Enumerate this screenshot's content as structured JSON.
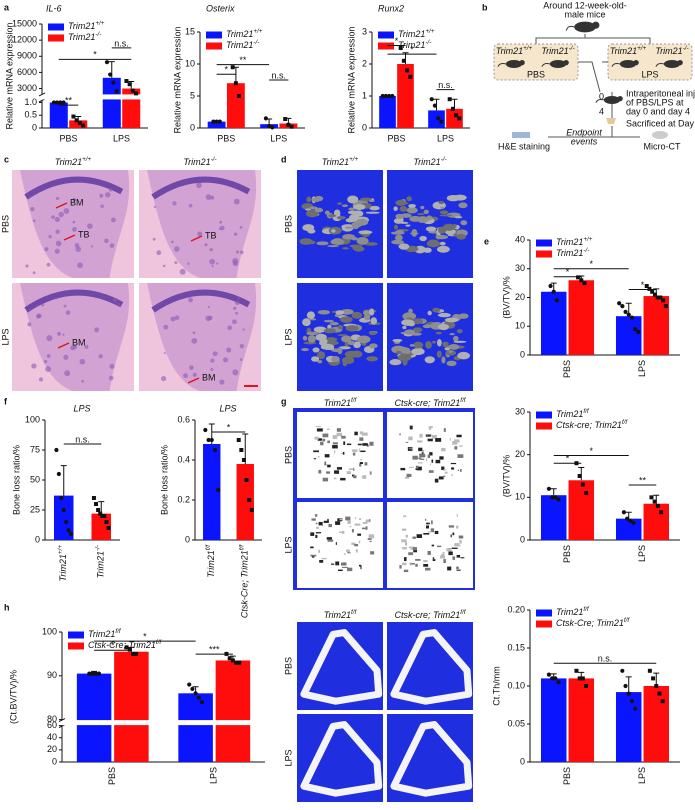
{
  "panel_labels": [
    "a",
    "b",
    "c",
    "d",
    "e",
    "f",
    "g",
    "h"
  ],
  "chart_data": [
    {
      "type": "bar",
      "title": "IL-6",
      "y_label": "Relative mRNA expression",
      "categories": [
        "PBS",
        "LPS"
      ],
      "ylim": [
        0,
        15000
      ],
      "axis_break": [
        1.1,
        2000
      ],
      "yticks": [
        0,
        0.5,
        {
          "value": 1,
          "label": "1.0"
        },
        3000,
        6000,
        9000,
        12000,
        15000
      ],
      "legend": true,
      "series": [
        {
          "name": "Trim21+/+",
          "color": "#0a14ff",
          "marker": "circle",
          "values": [
            1,
            5000
          ],
          "errors": [
            0,
            3000
          ],
          "points": [
            [
              1,
              1,
              1,
              1
            ],
            [
              7900,
              5600,
              4100,
              2500
            ]
          ]
        },
        {
          "name": "Trim21-/-",
          "color": "#ff0d0d",
          "marker": "square",
          "values": [
            0.3,
            3000
          ],
          "errors": [
            0.15,
            1300
          ],
          "points": [
            [
              0.45,
              0.3,
              0.2,
              0.1
            ],
            [
              4400,
              3800,
              2600,
              2100
            ]
          ]
        }
      ],
      "annotations": [
        "**",
        "*",
        "n.s."
      ]
    },
    {
      "type": "bar",
      "title": "Osterix",
      "y_label": "Relative mRNA expression",
      "categories": [
        "PBS",
        "LPS"
      ],
      "ylim": [
        0,
        15
      ],
      "yticks": [
        0,
        5,
        10,
        15
      ],
      "legend": true,
      "series": [
        {
          "name": "Trim21+/+",
          "color": "#0a14ff",
          "marker": "circle",
          "values": [
            1,
            0.6
          ],
          "errors": [
            0,
            0.8
          ],
          "points": [
            [
              1,
              1,
              1
            ],
            [
              1.5,
              0.3,
              0.1
            ]
          ]
        },
        {
          "name": "Trim21-/-",
          "color": "#ff0d0d",
          "marker": "square",
          "values": [
            7,
            0.7
          ],
          "errors": [
            2.5,
            0.8
          ],
          "points": [
            [
              9.5,
              7,
              5
            ],
            [
              1.4,
              0.5,
              0.2
            ]
          ]
        }
      ],
      "annotations": [
        "*",
        "**",
        "n.s."
      ]
    },
    {
      "type": "bar",
      "title": "Runx2",
      "y_label": "Relative mRNA expression",
      "categories": [
        "PBS",
        "LPS"
      ],
      "ylim": [
        0,
        3
      ],
      "yticks": [
        0,
        1,
        2,
        3
      ],
      "legend": true,
      "series": [
        {
          "name": "Trim21+/+",
          "color": "#0a14ff",
          "marker": "circle",
          "values": [
            1,
            0.55
          ],
          "errors": [
            0,
            0.35
          ],
          "points": [
            [
              1,
              1,
              1,
              1
            ],
            [
              0.9,
              0.7,
              0.3,
              0.2
            ]
          ]
        },
        {
          "name": "Trim21-/-",
          "color": "#ff0d0d",
          "marker": "square",
          "values": [
            2,
            0.6
          ],
          "errors": [
            0.35,
            0.3
          ],
          "points": [
            [
              2.5,
              2.1,
              1.8,
              1.6
            ],
            [
              0.9,
              0.6,
              0.4,
              0.3
            ]
          ]
        }
      ],
      "annotations": [
        "*",
        "*",
        "n.s."
      ]
    },
    {
      "type": "bar",
      "y_label": "(BV/TV)/%",
      "categories": [
        "PBS",
        "LPS"
      ],
      "ylim": [
        0,
        40
      ],
      "yticks": [
        0,
        10,
        20,
        30,
        40
      ],
      "legend": true,
      "series": [
        {
          "name": "Trim21+/+",
          "color": "#0a14ff",
          "marker": "circle",
          "values": [
            22,
            13.5
          ],
          "errors": [
            3,
            4.5
          ],
          "points": [
            [
              24,
              22,
              19
            ],
            [
              18,
              17,
              15,
              14,
              13,
              9,
              8
            ]
          ]
        },
        {
          "name": "Trim21-/-",
          "color": "#ff0d0d",
          "marker": "square",
          "values": [
            26,
            20.5
          ],
          "errors": [
            1.5,
            2.5
          ],
          "points": [
            [
              27,
              26,
              25
            ],
            [
              24,
              23,
              22,
              21,
              20,
              20,
              19,
              17
            ]
          ]
        }
      ],
      "annotations": [
        "*",
        "*",
        "*"
      ]
    },
    {
      "type": "bar",
      "title": "LPS",
      "y_label": "Bone loss ratio/%",
      "categories": [
        "Trim21+/+",
        "Trim21-/-"
      ],
      "ylim": [
        0,
        100
      ],
      "yticks": [
        0,
        25,
        50,
        75,
        100
      ],
      "values": [
        37,
        22
      ],
      "errors": [
        25,
        10
      ],
      "colors": [
        "#0a14ff",
        "#ff0d0d"
      ],
      "markers": [
        "circle",
        "square"
      ],
      "points": [
        [
          75,
          55,
          35,
          25,
          15,
          8,
          5
        ],
        [
          35,
          30,
          25,
          22,
          20,
          20,
          15,
          10
        ]
      ],
      "annotations": [
        "n.s."
      ]
    },
    {
      "type": "bar",
      "title": "LPS",
      "y_label": "Bone loss ratio/%",
      "categories": [
        "Trim21f/f",
        "Ctsk-Cre; Trim21f/f"
      ],
      "ylim": [
        0,
        0.6
      ],
      "yticks": [
        0,
        0.2,
        0.4,
        0.6
      ],
      "values": [
        0.48,
        0.38
      ],
      "errors": [
        0.1,
        0.15
      ],
      "colors": [
        "#0a14ff",
        "#ff0d0d"
      ],
      "markers": [
        "circle",
        "square"
      ],
      "points": [
        [
          0.55,
          0.5,
          0.5,
          0.45,
          0.25
        ],
        [
          0.5,
          0.45,
          0.4,
          0.3,
          0.2,
          0.15
        ]
      ],
      "annotations": [
        "*"
      ]
    },
    {
      "type": "bar",
      "y_label": "(BV/TV)/%",
      "categories": [
        "PBS",
        "LPS"
      ],
      "ylim": [
        0,
        30
      ],
      "yticks": [
        0,
        10,
        20,
        30
      ],
      "legend": true,
      "series": [
        {
          "name": "Trim21f/f",
          "color": "#0a14ff",
          "marker": "circle",
          "values": [
            10.5,
            5
          ],
          "errors": [
            1.5,
            1.5
          ],
          "points": [
            [
              12,
              10,
              10,
              9.5
            ],
            [
              6.5,
              5,
              4.5,
              4
            ]
          ]
        },
        {
          "name": "Ctsk-cre; Trim21f/f",
          "color": "#ff0d0d",
          "marker": "square",
          "values": [
            14,
            8.5
          ],
          "errors": [
            3,
            2
          ],
          "points": [
            [
              18,
              15,
              13,
              11
            ],
            [
              10,
              9,
              8,
              6.5
            ]
          ]
        }
      ],
      "annotations": [
        "*",
        "*",
        "**"
      ]
    },
    {
      "type": "bar",
      "y_label": "(Ct.BV/TV)/%",
      "categories": [
        "PBS",
        "LPS"
      ],
      "ylim": [
        0,
        100
      ],
      "axis_break": [
        60,
        80
      ],
      "yticks": [
        0,
        20,
        40,
        60,
        80,
        90,
        100
      ],
      "legend": true,
      "series": [
        {
          "name": "Trim21f/f",
          "color": "#0a14ff",
          "marker": "circle",
          "values": [
            90.5,
            86
          ],
          "errors": [
            0.5,
            1.5
          ],
          "points": [
            [
              90.5,
              90.5,
              90.5,
              90.5
            ],
            [
              88,
              87,
              86,
              85,
              84
            ]
          ]
        },
        {
          "name": "Ctsk-Cre; Trim21f/f",
          "color": "#ff0d0d",
          "marker": "square",
          "values": [
            95.5,
            93.5
          ],
          "errors": [
            1,
            1
          ],
          "points": [
            [
              96.5,
              96,
              95,
              95
            ],
            [
              95,
              94,
              93.5,
              93,
              93
            ]
          ]
        }
      ],
      "annotations": [
        "*",
        "*",
        "***"
      ]
    },
    {
      "type": "bar",
      "y_label": "Ct.Th/mm",
      "categories": [
        "PBS",
        "LPS"
      ],
      "ylim": [
        0,
        0.2
      ],
      "yticks": [
        0,
        0.05,
        {
          "value": 0.1,
          "label": "0.10"
        },
        0.15,
        {
          "value": 0.2,
          "label": "0.20"
        }
      ],
      "legend": true,
      "series": [
        {
          "name": "Trim21f/f",
          "color": "#0a14ff",
          "marker": "circle",
          "values": [
            0.11,
            0.092
          ],
          "errors": [
            0.006,
            0.02
          ],
          "points": [
            [
              0.115,
              0.11,
              0.11,
              0.105
            ],
            [
              0.12,
              0.1,
              0.09,
              0.08,
              0.07
            ]
          ]
        },
        {
          "name": "Ctsk-Cre; Trim21f/f",
          "color": "#ff0d0d",
          "marker": "square",
          "values": [
            0.11,
            0.1
          ],
          "errors": [
            0.008,
            0.017
          ],
          "points": [
            [
              0.12,
              0.11,
              0.11,
              0.1
            ],
            [
              0.12,
              0.11,
              0.1,
              0.09,
              0.08
            ]
          ]
        }
      ],
      "annotations": [
        "n.s."
      ]
    }
  ],
  "diagram": {
    "title_lines": [
      "Around 12-week-old-",
      "male mice"
    ],
    "groups": [
      {
        "genotypes": [
          "Trim21+/+",
          "Trim21-/-"
        ],
        "treatment": "PBS"
      },
      {
        "genotypes": [
          "Trim21+/+",
          "Trim21-/-"
        ],
        "treatment": "LPS"
      }
    ],
    "days": [
      "0",
      "4"
    ],
    "injection_lines": [
      "Intraperitoneal injection",
      "of PBS/LPS at",
      "day 0 and day 4"
    ],
    "sacrifice": "Sacrificed at Day 8",
    "endpoint_lines": [
      "Endpoint",
      "events"
    ],
    "methods": [
      "H&E staining",
      "Micro-CT"
    ]
  },
  "histology": {
    "columns": [
      "Trim21+/+",
      "Trim21-/-"
    ],
    "rows": [
      "PBS",
      "LPS"
    ],
    "markers": [
      "BM",
      "TB",
      "TB",
      "BM",
      "BM"
    ]
  },
  "micro_ct_d": {
    "columns": [
      "Trim21+/+",
      "Trim21-/-"
    ],
    "rows": [
      "PBS",
      "LPS"
    ]
  },
  "micro_ct_g": {
    "columns": [
      "Trim21f/f",
      "Ctsk-cre; Trim21f/f"
    ],
    "rows": [
      "PBS",
      "LPS"
    ]
  },
  "micro_ct_h": {
    "columns": [
      "Trim21f/f",
      "Ctsk-cre; Trim21f/f"
    ],
    "rows": [
      "PBS",
      "LPS"
    ]
  }
}
